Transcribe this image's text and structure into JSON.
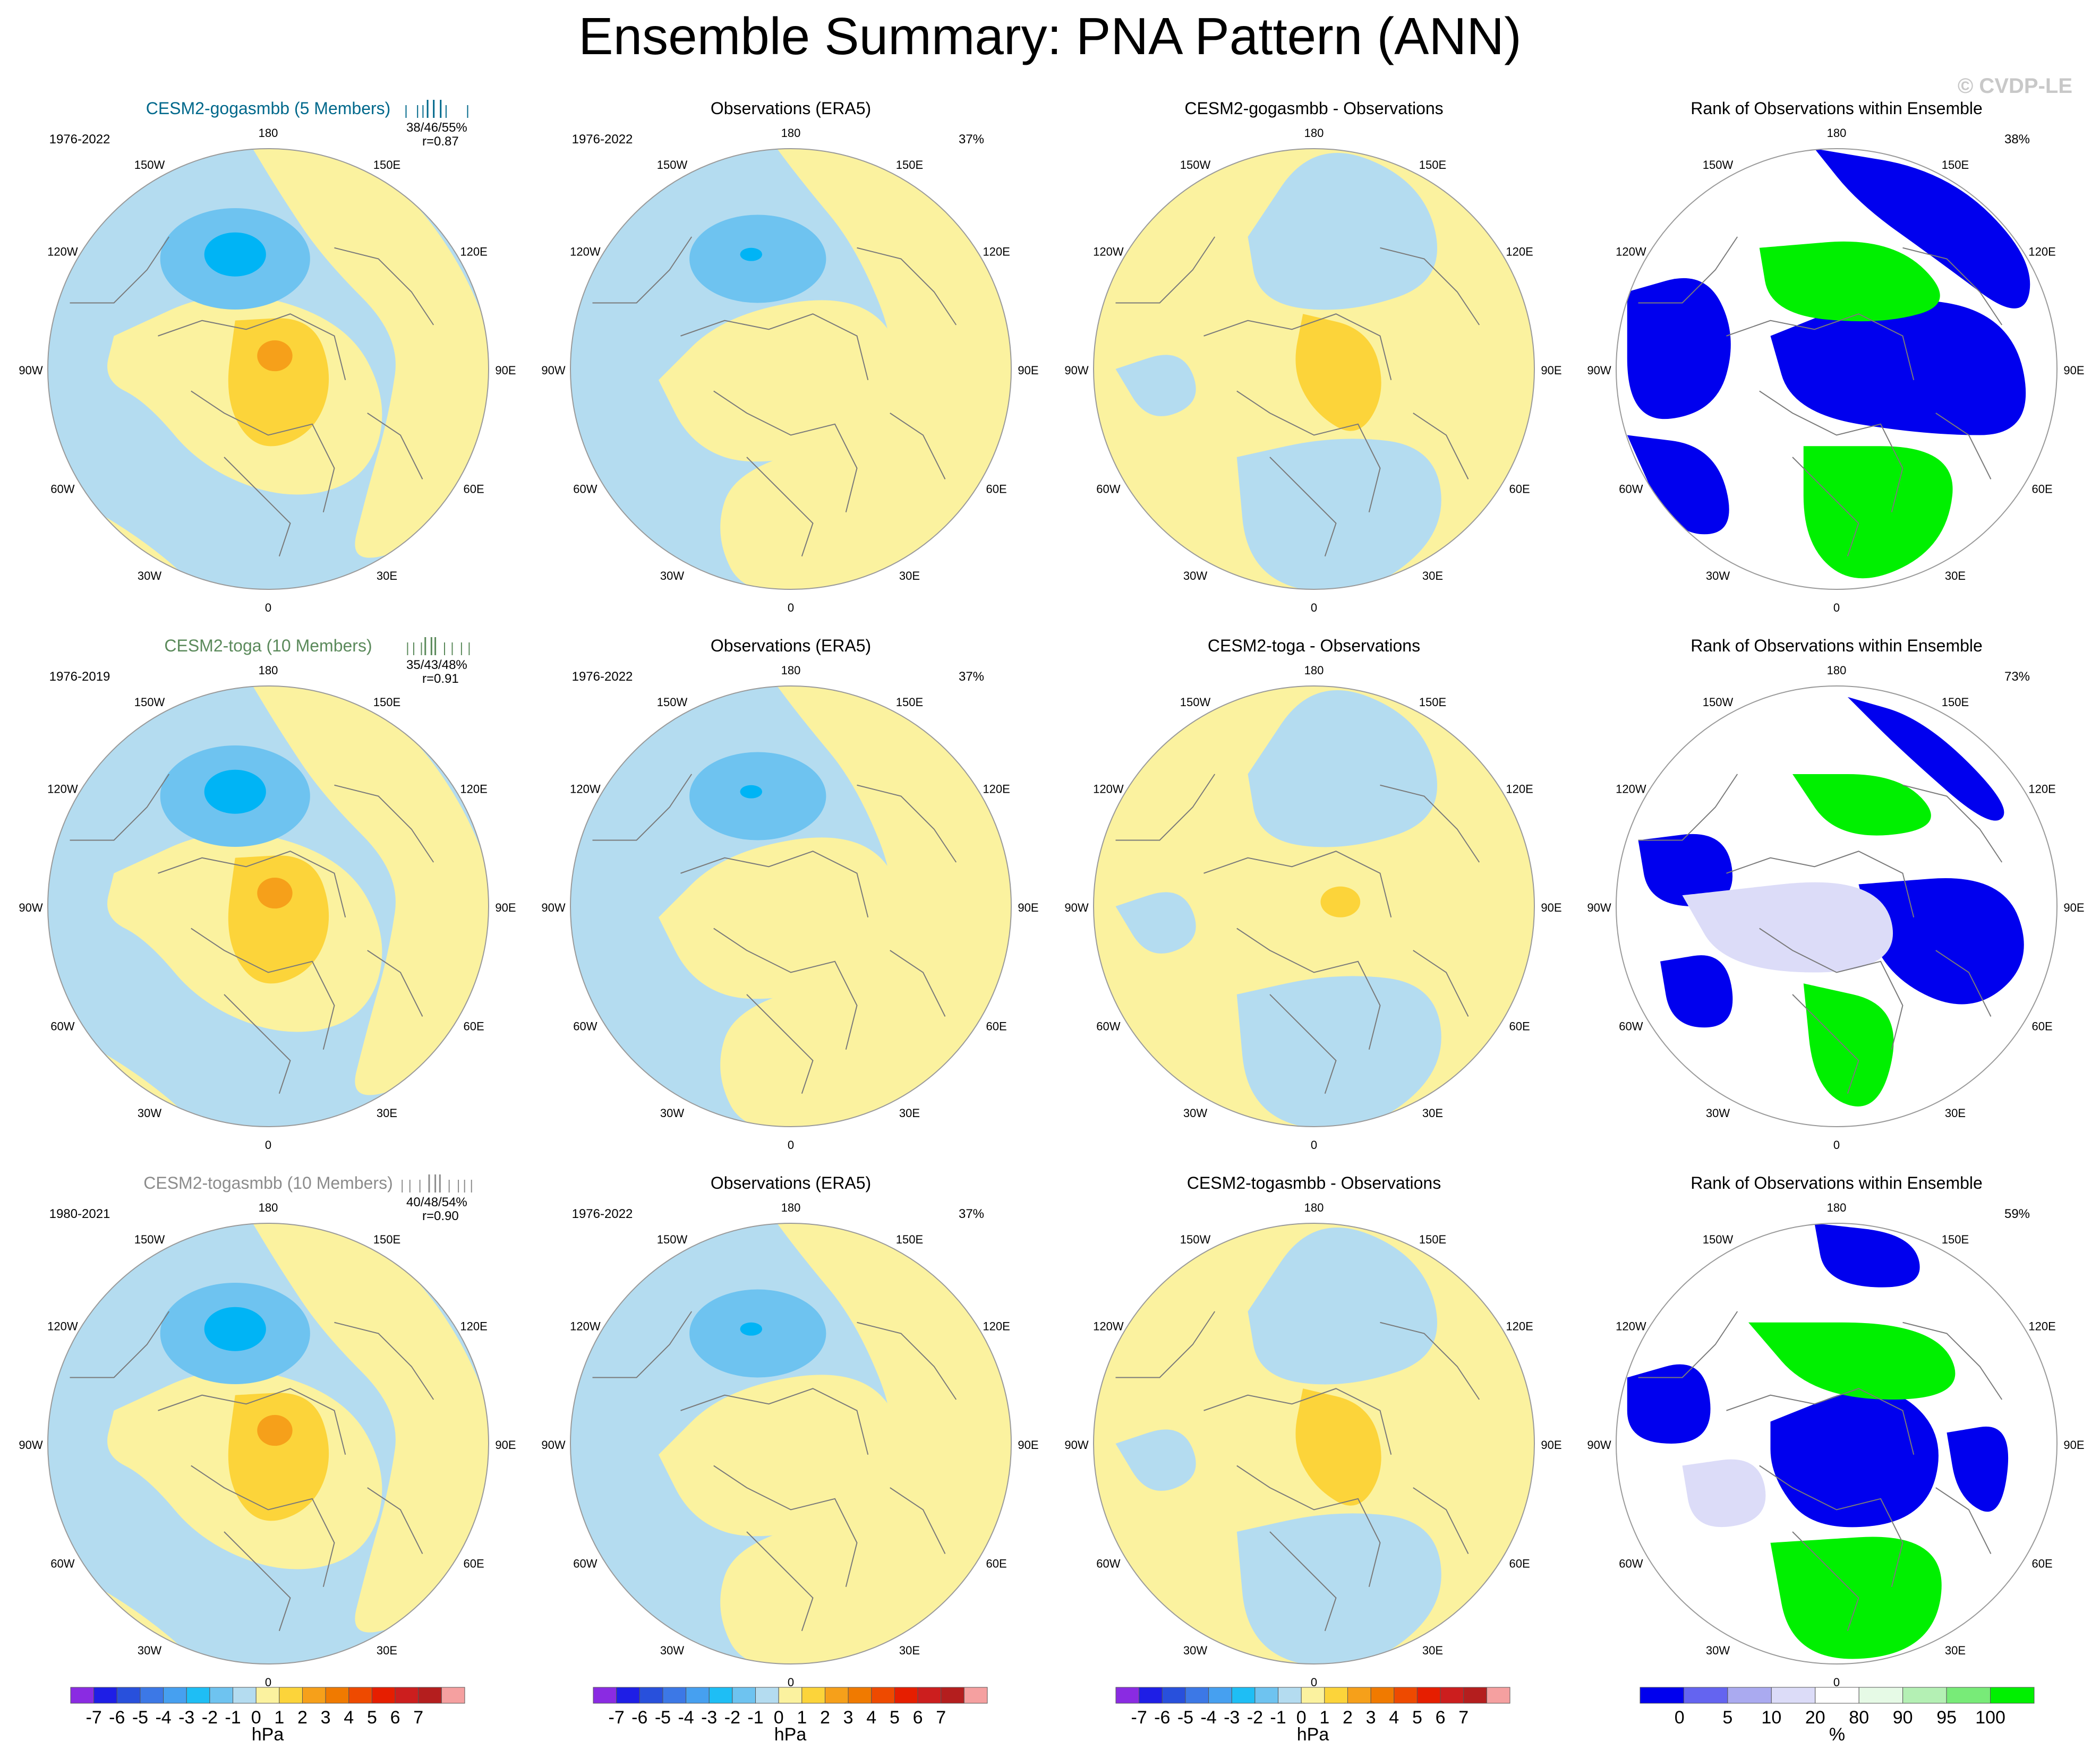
{
  "title": "Ensemble Summary: PNA Pattern (ANN)",
  "watermark": "© CVDP-LE",
  "colors": {
    "ocean_neg": "#b4dcf0",
    "pos_light": "#fbf29f",
    "neg_mid": "#6ec3f0",
    "neg_strong": "#00b4f5",
    "pos_mid": "#fcd43a",
    "pos_strong": "#f6a01a",
    "pos_core": "#f07a00",
    "rank_low": "#0000ee",
    "rank_high": "#00f000",
    "rank_pale_blue": "#dcdcf8",
    "rank_pale_green": "#e6fae6",
    "coast": "#7a7a7a"
  },
  "longitude_labels": [
    "180",
    "150E",
    "120E",
    "90E",
    "60E",
    "30E",
    "0",
    "30W",
    "60W",
    "90W",
    "120W",
    "150W"
  ],
  "chart_data": [
    {
      "type": "polar_contour_map",
      "panels": [
        {
          "row": 1,
          "col": 1,
          "title": "CESM2-gogasmbb (5 Members)",
          "title_color": "#00688b",
          "period": "1976-2022",
          "stats": "38/46/55%",
          "stat_r": "r=0.87",
          "tick_color": "#00688b",
          "ticks": [
            0.1,
            0.25,
            0.32,
            0.38,
            0.46,
            0.55,
            0.62,
            0.9
          ],
          "pattern": "model"
        },
        {
          "row": 1,
          "col": 2,
          "title": "Observations (ERA5)",
          "period": "1976-2022",
          "pct": "37%",
          "pattern": "obs"
        },
        {
          "row": 1,
          "col": 3,
          "title": "CESM2-gogasmbb - Observations",
          "pattern": "diff"
        },
        {
          "row": 1,
          "col": 4,
          "title": "Rank of Observations within Ensemble",
          "pct": "38%",
          "pattern": "rank_a"
        },
        {
          "row": 2,
          "col": 1,
          "title": "CESM2-toga (10 Members)",
          "title_color": "#5b8a5b",
          "period": "1976-2019",
          "stats": "35/43/48%",
          "stat_r": "r=0.91",
          "tick_color": "#5b8a5b",
          "ticks": [
            0.12,
            0.2,
            0.3,
            0.35,
            0.43,
            0.48,
            0.6,
            0.7,
            0.82,
            0.92
          ],
          "pattern": "model"
        },
        {
          "row": 2,
          "col": 2,
          "title": "Observations (ERA5)",
          "period": "1976-2022",
          "pct": "37%",
          "pattern": "obs"
        },
        {
          "row": 2,
          "col": 3,
          "title": "CESM2-toga - Observations",
          "pattern": "diff2"
        },
        {
          "row": 2,
          "col": 4,
          "title": "Rank of Observations within Ensemble",
          "pct": "73%",
          "pattern": "rank_b"
        },
        {
          "row": 3,
          "col": 1,
          "title": "CESM2-togasmbb (10 Members)",
          "title_color": "#8c8c8c",
          "period": "1980-2021",
          "stats": "40/48/54%",
          "stat_r": "r=0.90",
          "tick_color": "#8c8c8c",
          "ticks": [
            0.05,
            0.15,
            0.28,
            0.4,
            0.48,
            0.54,
            0.66,
            0.78,
            0.86,
            0.95
          ],
          "pattern": "model"
        },
        {
          "row": 3,
          "col": 2,
          "title": "Observations (ERA5)",
          "period": "1976-2022",
          "pct": "37%",
          "pattern": "obs"
        },
        {
          "row": 3,
          "col": 3,
          "title": "CESM2-togasmbb - Observations",
          "pattern": "diff"
        },
        {
          "row": 3,
          "col": 4,
          "title": "Rank of Observations within Ensemble",
          "pct": "59%",
          "pattern": "rank_c"
        }
      ]
    },
    {
      "type": "colorbar",
      "unit": "hPa",
      "values": [
        "-7",
        "-6",
        "-5",
        "-4",
        "-3",
        "-2",
        "-1",
        "0",
        "1",
        "2",
        "3",
        "4",
        "5",
        "6",
        "7"
      ],
      "colors": [
        "#8a2be2",
        "#1e1ee6",
        "#2850dc",
        "#3c78e6",
        "#46a0f0",
        "#1ebef5",
        "#6ec3f0",
        "#b4dcf0",
        "#fbf29f",
        "#fcd43a",
        "#f6a01a",
        "#f07a00",
        "#ee4a00",
        "#e61e00",
        "#cc1e1e",
        "#b41e1e",
        "#f5a0a0"
      ]
    },
    {
      "type": "colorbar",
      "unit": "%",
      "values": [
        "0",
        "5",
        "10",
        "20",
        "80",
        "90",
        "95",
        "100"
      ],
      "colors": [
        "#0000ee",
        "#6464f0",
        "#aaaaf0",
        "#dcdcf8",
        "#ffffff",
        "#e6fae6",
        "#b4f0b4",
        "#78eb78",
        "#00f000"
      ]
    }
  ]
}
